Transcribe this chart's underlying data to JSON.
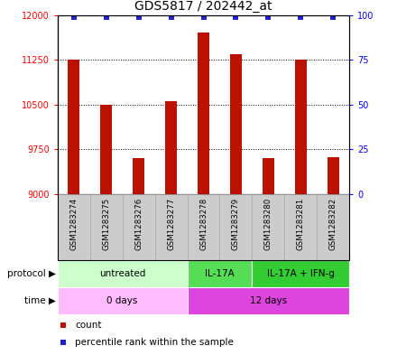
{
  "title": "GDS5817 / 202442_at",
  "samples": [
    "GSM1283274",
    "GSM1283275",
    "GSM1283276",
    "GSM1283277",
    "GSM1283278",
    "GSM1283279",
    "GSM1283280",
    "GSM1283281",
    "GSM1283282"
  ],
  "counts": [
    11250,
    10500,
    9600,
    10550,
    11700,
    11350,
    9600,
    11250,
    9620
  ],
  "ylim_left": [
    9000,
    12000
  ],
  "ylim_right": [
    0,
    100
  ],
  "yticks_left": [
    9000,
    9750,
    10500,
    11250,
    12000
  ],
  "yticks_right": [
    0,
    25,
    50,
    75,
    100
  ],
  "bar_color": "#bb1100",
  "dot_color": "#2222cc",
  "protocol_groups": [
    {
      "label": "untreated",
      "start": 0,
      "end": 4,
      "color": "#ccffcc"
    },
    {
      "label": "IL-17A",
      "start": 4,
      "end": 6,
      "color": "#55dd55"
    },
    {
      "label": "IL-17A + IFN-g",
      "start": 6,
      "end": 9,
      "color": "#33cc33"
    }
  ],
  "time_groups": [
    {
      "label": "0 days",
      "start": 0,
      "end": 4,
      "color": "#ffbbff"
    },
    {
      "label": "12 days",
      "start": 4,
      "end": 9,
      "color": "#dd44dd"
    }
  ],
  "legend_count_label": "count",
  "legend_percentile_label": "percentile rank within the sample",
  "protocol_label": "protocol",
  "time_label": "time",
  "sample_box_color": "#cccccc",
  "sample_box_edge": "#aaaaaa",
  "title_fontsize": 10,
  "axis_fontsize": 7,
  "label_fontsize": 8
}
